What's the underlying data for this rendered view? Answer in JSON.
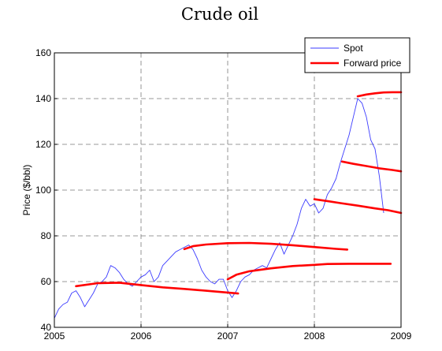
{
  "chart_data": {
    "type": "line",
    "title": "Crude oil",
    "xlabel": "",
    "ylabel": "Price ($/bbl)",
    "xlim": [
      2005,
      2009
    ],
    "ylim": [
      40,
      160
    ],
    "x_ticks": [
      "2005",
      "2006",
      "2007",
      "2008",
      "2009"
    ],
    "y_ticks": [
      "40",
      "60",
      "80",
      "100",
      "120",
      "140",
      "160"
    ],
    "grid": true,
    "legend_position": "top-right",
    "colors": {
      "spot": "#3b3bff",
      "forward": "#ff0000"
    },
    "series": [
      {
        "name": "Spot",
        "style": "thin-line",
        "x": [
          2005.0,
          2005.05,
          2005.1,
          2005.15,
          2005.2,
          2005.25,
          2005.3,
          2005.35,
          2005.4,
          2005.45,
          2005.5,
          2005.55,
          2005.6,
          2005.65,
          2005.7,
          2005.75,
          2005.8,
          2005.85,
          2005.9,
          2005.95,
          2006.0,
          2006.05,
          2006.1,
          2006.15,
          2006.2,
          2006.25,
          2006.3,
          2006.35,
          2006.4,
          2006.45,
          2006.5,
          2006.55,
          2006.6,
          2006.65,
          2006.7,
          2006.75,
          2006.8,
          2006.85,
          2006.9,
          2006.95,
          2007.0,
          2007.05,
          2007.1,
          2007.15,
          2007.2,
          2007.25,
          2007.3,
          2007.35,
          2007.4,
          2007.45,
          2007.5,
          2007.55,
          2007.6,
          2007.65,
          2007.7,
          2007.75,
          2007.8,
          2007.85,
          2007.9,
          2007.95,
          2008.0,
          2008.05,
          2008.1,
          2008.15,
          2008.2,
          2008.25,
          2008.3,
          2008.35,
          2008.4,
          2008.45,
          2008.5,
          2008.55,
          2008.6,
          2008.65,
          2008.7,
          2008.75,
          2008.8
        ],
        "values": [
          44,
          48,
          50,
          51,
          55,
          56,
          53,
          49,
          52,
          55,
          59,
          60,
          62,
          67,
          66,
          64,
          61,
          59,
          58,
          60,
          62,
          63,
          65,
          60,
          62,
          67,
          69,
          71,
          73,
          74,
          75,
          76,
          74,
          70,
          65,
          62,
          60,
          59,
          61,
          61,
          56,
          53,
          56,
          60,
          62,
          63,
          65,
          66,
          67,
          66,
          70,
          74,
          77,
          72,
          76,
          80,
          85,
          92,
          96,
          93,
          94,
          90,
          92,
          98,
          101,
          105,
          112,
          118,
          124,
          132,
          140,
          138,
          132,
          122,
          118,
          106,
          90
        ]
      },
      {
        "name": "Forward price",
        "style": "thick-line",
        "segments": [
          {
            "x": [
              2005.25,
              2005.5,
              2005.75,
              2006.0,
              2006.25,
              2006.5,
              2006.75,
              2007.0,
              2007.12
            ],
            "values": [
              58,
              59.3,
              59.5,
              58.5,
              57.5,
              56.8,
              56,
              55.2,
              54.8
            ]
          },
          {
            "x": [
              2006.5,
              2006.6,
              2006.75,
              2007.0,
              2007.25,
              2007.5,
              2007.75,
              2008.0,
              2008.25,
              2008.38
            ],
            "values": [
              74.2,
              75.5,
              76.2,
              76.8,
              76.9,
              76.5,
              75.9,
              75.1,
              74.3,
              74
            ]
          },
          {
            "x": [
              2007.0,
              2007.1,
              2007.25,
              2007.5,
              2007.75,
              2008.0,
              2008.15,
              2008.4,
              2008.7,
              2008.88
            ],
            "values": [
              61,
              63,
              64.5,
              65.8,
              66.8,
              67.3,
              67.7,
              67.8,
              67.8,
              67.8
            ]
          },
          {
            "x": [
              2008.0,
              2008.15,
              2008.3,
              2008.5,
              2008.7,
              2008.85,
              2009.0
            ],
            "values": [
              96,
              95.2,
              94.3,
              93.2,
              92,
              91.2,
              90
            ]
          },
          {
            "x": [
              2008.32,
              2008.45,
              2008.6,
              2008.75,
              2008.9,
              2009.0
            ],
            "values": [
              112.5,
              111.5,
              110.5,
              109.5,
              108.8,
              108.2
            ]
          },
          {
            "x": [
              2008.5,
              2008.6,
              2008.7,
              2008.8,
              2008.9,
              2009.0
            ],
            "values": [
              141,
              141.8,
              142.3,
              142.7,
              142.8,
              142.8
            ]
          }
        ]
      }
    ]
  }
}
